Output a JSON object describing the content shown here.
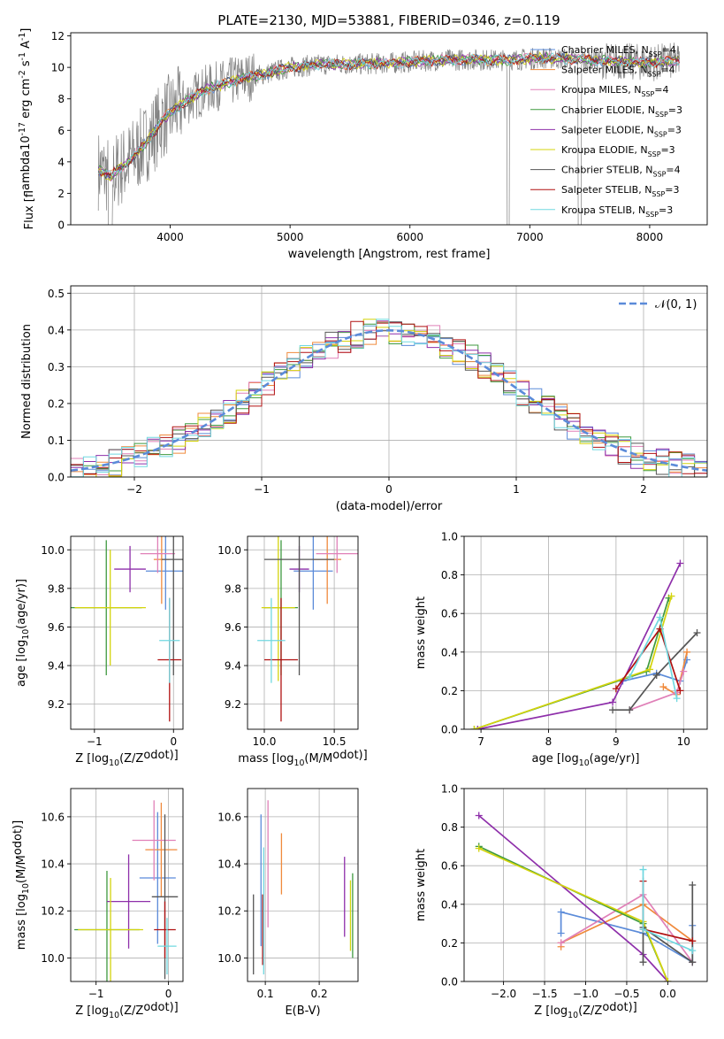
{
  "colors": {
    "cm": "#5b8bd9",
    "sm": "#f08a3c",
    "km": "#e080b8",
    "ce": "#3f9a3f",
    "se": "#8e2faa",
    "ke": "#d4d40c",
    "cs": "#555555",
    "ss": "#b01010",
    "ks": "#70d8e0",
    "gauss": "#5b8bd9",
    "flux": "#808080"
  },
  "chart_data": [
    {
      "id": "spectrum",
      "type": "line",
      "title": "PLATE=2130, MJD=53881, FIBERID=0346, z=0.119",
      "xlabel": "wavelength [Angstrom, rest frame]",
      "ylabel": "Flux [f$_\\lambda$10$^{-17}$ erg cm$^{-2}$ s$^{-1}$ A$^{-1}$]",
      "xlim": [
        3170,
        8480
      ],
      "ylim": [
        0,
        12.2
      ],
      "xticks": [
        4000,
        5000,
        6000,
        7000,
        8000
      ],
      "yticks": [
        0,
        2,
        4,
        6,
        8,
        10,
        12
      ],
      "legend_placement": "upper-right",
      "continuum": {
        "x": [
          3400,
          3500,
          3650,
          3800,
          3950,
          4100,
          4300,
          4600,
          4800,
          5000,
          5300,
          5600,
          5900,
          6200,
          6500,
          6800,
          7100,
          7400,
          7700,
          8000,
          8200
        ],
        "y": [
          3.5,
          3.1,
          4.0,
          5.2,
          6.8,
          7.7,
          8.6,
          9.3,
          9.6,
          10.0,
          10.2,
          10.2,
          10.3,
          10.45,
          10.5,
          10.45,
          10.6,
          10.5,
          10.4,
          10.3,
          10.4
        ]
      },
      "series": [
        {
          "name": "Chabrier MILES, N$_{SSP}$=4",
          "color_key": "cm"
        },
        {
          "name": "Salpeter MILES, N$_{SSP}$=4",
          "color_key": "sm"
        },
        {
          "name": "Kroupa MILES, N$_{SSP}$=4",
          "color_key": "km"
        },
        {
          "name": "Chabrier ELODIE, N$_{SSP}$=3",
          "color_key": "ce"
        },
        {
          "name": "Salpeter ELODIE, N$_{SSP}$=3",
          "color_key": "se"
        },
        {
          "name": "Kroupa ELODIE, N$_{SSP}$=3",
          "color_key": "ke"
        },
        {
          "name": "Chabrier STELIB, N$_{SSP}$=4",
          "color_key": "cs"
        },
        {
          "name": "Salpeter STELIB, N$_{SSP}$=3",
          "color_key": "ss"
        },
        {
          "name": "Kroupa STELIB, N$_{SSP}$=3",
          "color_key": "ks"
        }
      ]
    },
    {
      "id": "residuals",
      "type": "line",
      "xlabel": "(data-model)/error",
      "ylabel": "Normed distribution",
      "xlim": [
        -2.5,
        2.5
      ],
      "ylim": [
        0,
        0.52
      ],
      "xticks": [
        -2,
        -1,
        0,
        1,
        2
      ],
      "yticks": [
        0.0,
        0.1,
        0.2,
        0.3,
        0.4,
        0.5
      ],
      "grid": true,
      "legend_placement": "upper-right",
      "legend": "$\\mathcal{N}(0,1)$",
      "bin_width": 0.1
    },
    {
      "id": "age_vs_Z",
      "type": "scatter",
      "xlabel": "Z [log$_{10}$(Z/Z$_\\odot$)]",
      "ylabel": "age  [log$_{10}$(age/yr)]",
      "xlim": [
        -1.3,
        0.12
      ],
      "ylim": [
        9.07,
        10.07
      ],
      "xticks": [
        -1,
        0
      ],
      "yticks": [
        9.2,
        9.4,
        9.6,
        9.8,
        10.0
      ],
      "grid": true,
      "points": [
        {
          "x": -0.1,
          "y": 9.89,
          "xe": 0.25,
          "ye": 0.2,
          "c": "cm"
        },
        {
          "x": -0.15,
          "y": 9.95,
          "xe": 0.1,
          "ye": 0.23,
          "c": "sm"
        },
        {
          "x": -0.2,
          "y": 9.98,
          "xe": 0.22,
          "ye": 0.1,
          "c": "km"
        },
        {
          "x": -0.85,
          "y": 9.7,
          "xe": 0.45,
          "ye": 0.35,
          "c": "ce"
        },
        {
          "x": -0.55,
          "y": 9.9,
          "xe": 0.2,
          "ye": 0.12,
          "c": "se"
        },
        {
          "x": -0.8,
          "y": 9.7,
          "xe": 0.45,
          "ye": 0.3,
          "c": "ke"
        },
        {
          "x": 0.0,
          "y": 9.95,
          "xe": 0.15,
          "ye": 0.6,
          "c": "cs"
        },
        {
          "x": -0.05,
          "y": 9.43,
          "xe": 0.15,
          "ye": 0.32,
          "c": "ss"
        },
        {
          "x": -0.05,
          "y": 9.53,
          "xe": 0.13,
          "ye": 0.22,
          "c": "ks"
        }
      ]
    },
    {
      "id": "age_vs_mass",
      "type": "scatter",
      "xlabel": "mass [log$_{10}$(M/M$_\\odot$)]",
      "ylabel": "",
      "xlim": [
        9.88,
        10.67
      ],
      "ylim": [
        9.07,
        10.07
      ],
      "xticks": [
        10.0,
        10.5
      ],
      "yticks": [
        9.2,
        9.4,
        9.6,
        9.8,
        10.0
      ],
      "grid": true,
      "points": [
        {
          "x": 10.35,
          "y": 9.89,
          "xe": 0.14,
          "ye": 0.2,
          "c": "cm"
        },
        {
          "x": 10.45,
          "y": 9.95,
          "xe": 0.1,
          "ye": 0.23,
          "c": "sm"
        },
        {
          "x": 10.52,
          "y": 9.98,
          "xe": 0.15,
          "ye": 0.1,
          "c": "km"
        },
        {
          "x": 10.12,
          "y": 9.7,
          "xe": 0.12,
          "ye": 0.35,
          "c": "ce"
        },
        {
          "x": 10.25,
          "y": 9.9,
          "xe": 0.07,
          "ye": 0.12,
          "c": "se"
        },
        {
          "x": 10.1,
          "y": 9.7,
          "xe": 0.12,
          "ye": 0.38,
          "c": "ke"
        },
        {
          "x": 10.25,
          "y": 9.95,
          "xe": 0.25,
          "ye": 0.6,
          "c": "cs"
        },
        {
          "x": 10.12,
          "y": 9.43,
          "xe": 0.12,
          "ye": 0.32,
          "c": "ss"
        },
        {
          "x": 10.05,
          "y": 9.53,
          "xe": 0.1,
          "ye": 0.22,
          "c": "ks"
        }
      ]
    },
    {
      "id": "weight_vs_age",
      "type": "line",
      "xlabel": "age  [log$_{10}$(age/yr)]",
      "ylabel": "mass weight",
      "xlim": [
        6.75,
        10.35
      ],
      "ylim": [
        0,
        1.0
      ],
      "xticks": [
        7,
        8,
        9,
        10
      ],
      "yticks": [
        0.0,
        0.2,
        0.4,
        0.6,
        0.8,
        1.0
      ],
      "grid": true,
      "series": [
        {
          "c": "cm",
          "x": [
            9.1,
            9.6,
            9.95,
            10.05
          ],
          "y": [
            0.25,
            0.29,
            0.25,
            0.36
          ]
        },
        {
          "c": "sm",
          "x": [
            9.7,
            9.9,
            10.05
          ],
          "y": [
            0.22,
            0.18,
            0.4
          ]
        },
        {
          "c": "km",
          "x": [
            9.2,
            9.9,
            10.0
          ],
          "y": [
            0.1,
            0.19,
            0.3
          ]
        },
        {
          "c": "ce",
          "x": [
            6.9,
            9.45,
            9.78
          ],
          "y": [
            0.0,
            0.3,
            0.68
          ]
        },
        {
          "c": "se",
          "x": [
            6.95,
            8.95,
            9.95
          ],
          "y": [
            0.0,
            0.14,
            0.86
          ]
        },
        {
          "c": "ke",
          "x": [
            6.9,
            9.5,
            9.82
          ],
          "y": [
            0.0,
            0.31,
            0.69
          ]
        },
        {
          "c": "cs",
          "x": [
            8.95,
            9.2,
            9.6,
            10.2
          ],
          "y": [
            0.1,
            0.1,
            0.28,
            0.5
          ]
        },
        {
          "c": "ss",
          "x": [
            9.0,
            9.65,
            9.95
          ],
          "y": [
            0.21,
            0.52,
            0.2
          ]
        },
        {
          "c": "ks",
          "x": [
            9.2,
            9.65,
            9.9
          ],
          "y": [
            0.27,
            0.58,
            0.16
          ]
        }
      ]
    },
    {
      "id": "mass_vs_Z",
      "type": "scatter",
      "xlabel": "Z [log$_{10}$(Z/Z$_\\odot$)]",
      "ylabel": "mass [log$_{10}$(M/M$_\\odot$)]",
      "xlim": [
        -1.35,
        0.2
      ],
      "ylim": [
        9.9,
        10.72
      ],
      "xticks": [
        -1,
        0
      ],
      "yticks": [
        10.0,
        10.2,
        10.4,
        10.6
      ],
      "grid": true,
      "points": [
        {
          "x": -0.15,
          "y": 10.34,
          "xe": 0.25,
          "ye": 0.28,
          "c": "cm"
        },
        {
          "x": -0.1,
          "y": 10.46,
          "xe": 0.22,
          "ye": 0.2,
          "c": "sm"
        },
        {
          "x": -0.2,
          "y": 10.5,
          "xe": 0.3,
          "ye": 0.17,
          "c": "km"
        },
        {
          "x": -0.85,
          "y": 10.12,
          "xe": 0.45,
          "ye": 0.25,
          "c": "ce"
        },
        {
          "x": -0.55,
          "y": 10.24,
          "xe": 0.3,
          "ye": 0.2,
          "c": "se"
        },
        {
          "x": -0.8,
          "y": 10.12,
          "xe": 0.45,
          "ye": 0.22,
          "c": "ke"
        },
        {
          "x": -0.05,
          "y": 10.26,
          "xe": 0.18,
          "ye": 0.35,
          "c": "cs"
        },
        {
          "x": -0.05,
          "y": 10.12,
          "xe": 0.15,
          "ye": 0.12,
          "c": "ss"
        },
        {
          "x": -0.02,
          "y": 10.05,
          "xe": 0.13,
          "ye": 0.12,
          "c": "ks"
        }
      ]
    },
    {
      "id": "mass_vs_ebv",
      "type": "scatter",
      "xlabel": "E(B-V)",
      "ylabel": "",
      "xlim": [
        0.067,
        0.272
      ],
      "ylim": [
        9.9,
        10.72
      ],
      "xticks": [
        0.1,
        0.2
      ],
      "yticks": [
        10.0,
        10.2,
        10.4,
        10.6
      ],
      "grid": true,
      "points": [
        {
          "x": 0.092,
          "y": 10.33,
          "ye": 0.28,
          "c": "cm"
        },
        {
          "x": 0.13,
          "y": 10.4,
          "ye": 0.13,
          "c": "sm"
        },
        {
          "x": 0.105,
          "y": 10.4,
          "ye": 0.27,
          "c": "km"
        },
        {
          "x": 0.262,
          "y": 10.18,
          "ye": 0.18,
          "c": "ce"
        },
        {
          "x": 0.247,
          "y": 10.26,
          "ye": 0.17,
          "c": "se"
        },
        {
          "x": 0.258,
          "y": 10.18,
          "ye": 0.15,
          "c": "ke"
        },
        {
          "x": 0.078,
          "y": 10.1,
          "ye": 0.17,
          "c": "cs"
        },
        {
          "x": 0.095,
          "y": 10.12,
          "ye": 0.15,
          "c": "ss"
        },
        {
          "x": 0.097,
          "y": 10.2,
          "ye": 0.27,
          "c": "ks"
        }
      ]
    },
    {
      "id": "weight_vs_Z",
      "type": "line",
      "xlabel": "Z [log$_{10}$(Z/Z$_\\odot$)]",
      "ylabel": "mass weight",
      "xlim": [
        -2.48,
        0.48
      ],
      "ylim": [
        0,
        1.0
      ],
      "xticks": [
        -2.0,
        -1.5,
        -1.0,
        -0.5,
        0.0
      ],
      "yticks": [
        0.0,
        0.2,
        0.4,
        0.6,
        0.8,
        1.0
      ],
      "grid": true,
      "series": [
        {
          "c": "cm",
          "x": [
            -1.3,
            -1.3,
            -0.3,
            0.3,
            0.3
          ],
          "y": [
            0.25,
            0.36,
            0.25,
            0.1,
            0.29
          ]
        },
        {
          "c": "sm",
          "x": [
            -1.3,
            -1.3,
            -0.3,
            0.3
          ],
          "y": [
            0.18,
            0.2,
            0.4,
            0.21
          ]
        },
        {
          "c": "km",
          "x": [
            -1.3,
            -0.3,
            0.3
          ],
          "y": [
            0.2,
            0.45,
            0.1
          ]
        },
        {
          "c": "ce",
          "x": [
            -2.3,
            -0.3,
            0.0
          ],
          "y": [
            0.7,
            0.3,
            0.0
          ]
        },
        {
          "c": "se",
          "x": [
            -2.3,
            -0.3,
            0.0
          ],
          "y": [
            0.86,
            0.14,
            0.0
          ]
        },
        {
          "c": "ke",
          "x": [
            -2.3,
            -0.3,
            0.0
          ],
          "y": [
            0.69,
            0.31,
            0.0
          ]
        },
        {
          "c": "cs",
          "x": [
            -0.3,
            -0.3,
            0.3,
            0.3
          ],
          "y": [
            0.1,
            0.28,
            0.1,
            0.5
          ]
        },
        {
          "c": "ss",
          "x": [
            -0.3,
            -0.3,
            0.3
          ],
          "y": [
            0.52,
            0.27,
            0.21
          ]
        },
        {
          "c": "ks",
          "x": [
            -0.3,
            -0.3,
            0.3
          ],
          "y": [
            0.58,
            0.27,
            0.16
          ]
        }
      ]
    }
  ]
}
